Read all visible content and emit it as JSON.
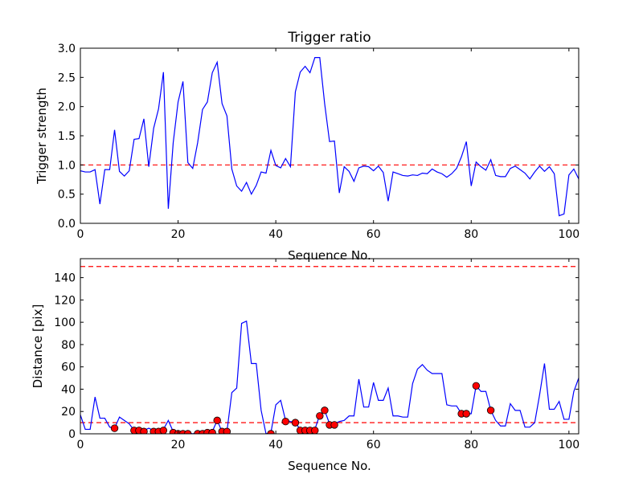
{
  "colors": {
    "line": "#0000ff",
    "threshold": "#ff0000",
    "marker": "#ff0000",
    "axes": "#000000"
  },
  "chart_data": [
    {
      "type": "line",
      "title": "Trigger ratio",
      "xlabel": "Sequence No.",
      "ylabel": "Trigger strength",
      "xlim": [
        0,
        102
      ],
      "ylim": [
        0,
        3.0
      ],
      "xticks": [
        0,
        20,
        40,
        60,
        80,
        100
      ],
      "xtick_labels": [
        "0",
        "20",
        "40",
        "60",
        "80",
        "100"
      ],
      "yticks": [
        0,
        0.5,
        1.0,
        1.5,
        2.0,
        2.5,
        3.0
      ],
      "ytick_labels": [
        "0.0",
        "0.5",
        "1.0",
        "1.5",
        "2.0",
        "2.5",
        "3.0"
      ],
      "hlines": [
        1.0
      ],
      "series": [
        {
          "name": "trigger strength",
          "x": [
            0,
            1,
            2,
            3,
            4,
            5,
            6,
            7,
            8,
            9,
            10,
            11,
            12,
            13,
            14,
            15,
            16,
            17,
            18,
            19,
            20,
            21,
            22,
            23,
            24,
            25,
            26,
            27,
            28,
            29,
            30,
            31,
            32,
            33,
            34,
            35,
            36,
            37,
            38,
            39,
            40,
            41,
            42,
            43,
            44,
            45,
            46,
            47,
            48,
            49,
            50,
            51,
            52,
            53,
            54,
            55,
            56,
            57,
            58,
            59,
            60,
            61,
            62,
            63,
            64,
            65,
            66,
            67,
            68,
            69,
            70,
            71,
            72,
            73,
            74,
            75,
            76,
            77,
            78,
            79,
            80,
            81,
            82,
            83,
            84,
            85,
            86,
            87,
            88,
            89,
            90,
            91,
            92,
            93,
            94,
            95,
            96,
            97,
            98,
            99,
            100,
            101,
            102
          ],
          "y": [
            0.9,
            0.88,
            0.88,
            0.92,
            0.33,
            0.92,
            0.92,
            1.6,
            0.89,
            0.81,
            0.9,
            1.44,
            1.45,
            1.79,
            0.97,
            1.63,
            1.96,
            2.59,
            0.25,
            1.38,
            2.08,
            2.43,
            1.04,
            0.94,
            1.38,
            1.95,
            2.08,
            2.58,
            2.76,
            2.05,
            1.84,
            0.93,
            0.64,
            0.55,
            0.7,
            0.5,
            0.65,
            0.88,
            0.86,
            1.25,
            0.99,
            0.95,
            1.11,
            0.97,
            2.25,
            2.59,
            2.69,
            2.58,
            2.84,
            2.84,
            2.05,
            1.4,
            1.41,
            0.52,
            0.97,
            0.89,
            0.72,
            0.95,
            0.98,
            0.97,
            0.9,
            0.98,
            0.87,
            0.38,
            0.88,
            0.85,
            0.82,
            0.81,
            0.83,
            0.82,
            0.86,
            0.85,
            0.93,
            0.88,
            0.85,
            0.79,
            0.85,
            0.94,
            1.14,
            1.4,
            0.64,
            1.05,
            0.97,
            0.91,
            1.09,
            0.82,
            0.8,
            0.8,
            0.94,
            0.98,
            0.92,
            0.86,
            0.76,
            0.88,
            0.98,
            0.89,
            0.97,
            0.85,
            0.13,
            0.16,
            0.83,
            0.93,
            0.76
          ]
        }
      ]
    },
    {
      "type": "line",
      "title": "",
      "xlabel": "Sequence No.",
      "ylabel": "Distance [pix]",
      "xlim": [
        0,
        102
      ],
      "ylim": [
        0,
        157
      ],
      "xticks": [
        0,
        20,
        40,
        60,
        80,
        100
      ],
      "xtick_labels": [
        "0",
        "20",
        "40",
        "60",
        "80",
        "100"
      ],
      "yticks": [
        0,
        20,
        40,
        60,
        80,
        100,
        120,
        140
      ],
      "ytick_labels": [
        "0",
        "20",
        "40",
        "60",
        "80",
        "100",
        "120",
        "140"
      ],
      "hlines": [
        10,
        150
      ],
      "series": [
        {
          "name": "distance",
          "x": [
            0,
            1,
            2,
            3,
            4,
            5,
            6,
            7,
            8,
            9,
            10,
            11,
            12,
            13,
            14,
            15,
            16,
            17,
            18,
            19,
            20,
            21,
            22,
            23,
            24,
            25,
            26,
            27,
            28,
            29,
            30,
            31,
            32,
            33,
            34,
            35,
            36,
            37,
            38,
            39,
            40,
            41,
            42,
            43,
            44,
            45,
            46,
            47,
            48,
            49,
            50,
            51,
            52,
            53,
            54,
            55,
            56,
            57,
            58,
            59,
            60,
            61,
            62,
            63,
            64,
            65,
            66,
            67,
            68,
            69,
            70,
            71,
            72,
            73,
            74,
            75,
            76,
            77,
            78,
            79,
            80,
            81,
            82,
            83,
            84,
            85,
            86,
            87,
            88,
            89,
            90,
            91,
            92,
            93,
            94,
            95,
            96,
            97,
            98,
            99,
            100,
            101,
            102
          ],
          "y": [
            17,
            4,
            4,
            33,
            14,
            14,
            6,
            5,
            15,
            12,
            9,
            3,
            3,
            3,
            5,
            3,
            3,
            4,
            12,
            2,
            1,
            1,
            1,
            0,
            1,
            1,
            2,
            2,
            12,
            2,
            2,
            37,
            41,
            99,
            101,
            63,
            63,
            21,
            0,
            1,
            26,
            30,
            12,
            11,
            10,
            4,
            4,
            4,
            4,
            17,
            21,
            9,
            9,
            11,
            12,
            16,
            16,
            49,
            24,
            24,
            46,
            30,
            30,
            41,
            16,
            16,
            15,
            15,
            45,
            58,
            62,
            57,
            54,
            54,
            54,
            26,
            25,
            25,
            18,
            18,
            18,
            43,
            38,
            38,
            21,
            12,
            7,
            7,
            27,
            21,
            21,
            6,
            6,
            10,
            35,
            63,
            22,
            22,
            29,
            13,
            13,
            38,
            50
          ]
        },
        {
          "name": "trigger points",
          "type": "scatter",
          "x": [
            7,
            11,
            12,
            13,
            15,
            16,
            17,
            19,
            20,
            21,
            22,
            24,
            25,
            26,
            27,
            28,
            29,
            30,
            39,
            42,
            44,
            45,
            46,
            47,
            48,
            49,
            50,
            51,
            52,
            78,
            79,
            81,
            84
          ],
          "y": [
            5,
            3,
            3,
            2,
            2,
            2,
            3,
            1,
            0,
            0,
            0,
            0,
            0,
            1,
            1,
            12,
            2,
            2,
            0,
            11,
            10,
            3,
            3,
            3,
            3,
            16,
            21,
            8,
            8,
            18,
            18,
            43,
            21
          ]
        }
      ]
    }
  ]
}
